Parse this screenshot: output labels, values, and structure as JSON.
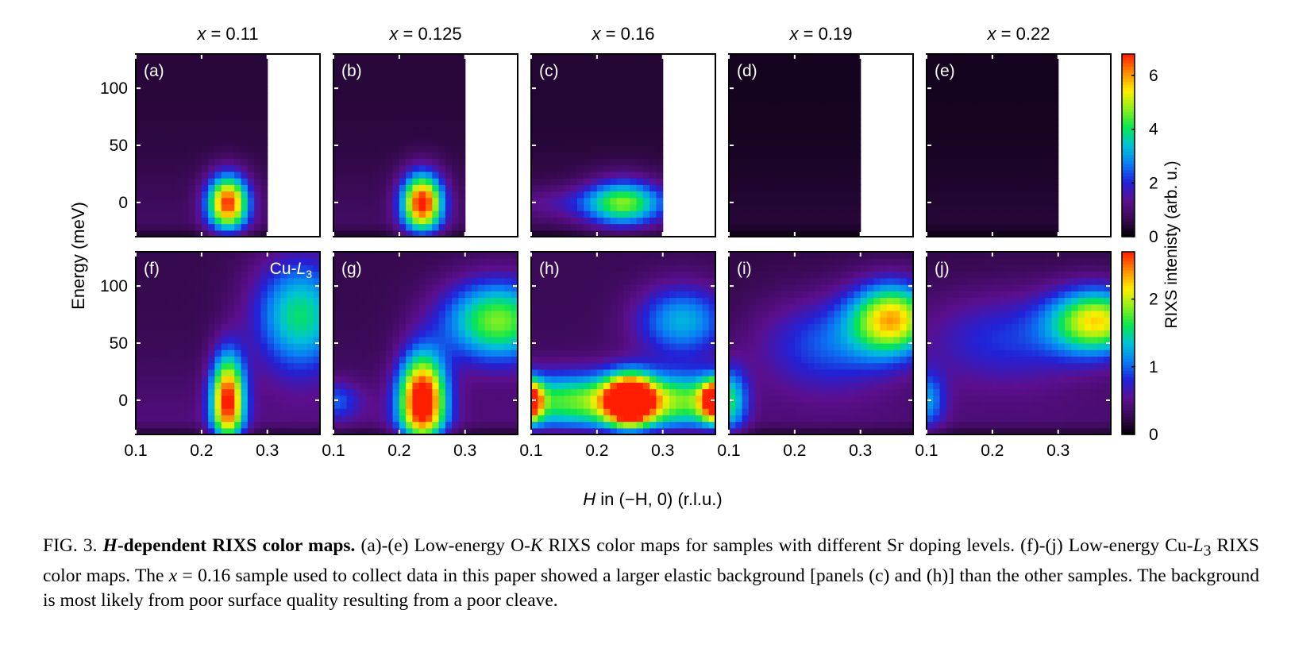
{
  "chart_data": {
    "type": "heatmap",
    "title": "",
    "xlabel": "H in (−H, 0) (r.l.u.)",
    "xlabel_italic_part": "H",
    "ylabel": "Energy (meV)",
    "colorbar_label": "RIXS intenisty (arb. u.)",
    "colormap": [
      "#000000",
      "#3a0a55",
      "#5b0f8e",
      "#2222d8",
      "#0a7cf4",
      "#00c2d8",
      "#08e650",
      "#8cf01c",
      "#ffee00",
      "#ff8c00",
      "#ff1e00"
    ],
    "grid": false,
    "xlim": [
      0.1,
      0.38
    ],
    "ylim": [
      -30,
      130
    ],
    "xticks": [
      0.1,
      0.2,
      0.3
    ],
    "xtick_labels": [
      "0.1",
      "0.2",
      "0.3"
    ],
    "yticks": [
      0,
      50,
      100
    ],
    "ytick_labels": [
      "0",
      "50",
      "100"
    ],
    "columns": [
      {
        "label_var": "x",
        "label": " = 0.11",
        "data_h_max": 0.3
      },
      {
        "label_var": "x",
        "label": " = 0.125",
        "data_h_max": 0.3
      },
      {
        "label_var": "x",
        "label": " = 0.16",
        "data_h_max": 0.3
      },
      {
        "label_var": "x",
        "label": " = 0.19",
        "data_h_max": 0.3
      },
      {
        "label_var": "x",
        "label": " = 0.22",
        "data_h_max": 0.3
      }
    ],
    "rows": [
      {
        "edge": "O-K",
        "edge_label": "O-",
        "edge_label_italic": "K",
        "colorbar_ticks": [
          0,
          2,
          4,
          6
        ],
        "colorbar_tick_labels": [
          "0",
          "2",
          "4",
          "6"
        ],
        "colorbar_max": 6.8,
        "panels": [
          {
            "label": "(a)",
            "background": 0.85,
            "features": [
              {
                "h": 0.24,
                "e": 0,
                "amp": 6.0,
                "sh": 0.022,
                "se": 17
              }
            ]
          },
          {
            "label": "(b)",
            "background": 0.85,
            "features": [
              {
                "h": 0.235,
                "e": 0,
                "amp": 6.3,
                "sh": 0.022,
                "se": 18
              }
            ]
          },
          {
            "label": "(c)",
            "background": 0.75,
            "features": [
              {
                "h": 0.24,
                "e": 0,
                "amp": 3.2,
                "sh": 0.04,
                "se": 15
              },
              {
                "h": 0.2,
                "e": 0,
                "amp": 0.9,
                "sh": 0.12,
                "se": 10
              }
            ]
          },
          {
            "label": "(d)",
            "background": 0.45,
            "features": []
          },
          {
            "label": "(e)",
            "background": 0.45,
            "features": []
          }
        ]
      },
      {
        "edge": "Cu-L3",
        "edge_label": "Cu-",
        "edge_label_italic": "L",
        "edge_label_sub": "3",
        "colorbar_ticks": [
          0,
          1,
          2
        ],
        "colorbar_tick_labels": [
          "0",
          "1",
          "2"
        ],
        "colorbar_max": 2.7,
        "panels": [
          {
            "label": "(f)",
            "background": 0.45,
            "features": [
              {
                "h": 0.24,
                "e": 0,
                "amp": 2.4,
                "sh": 0.018,
                "se": 28
              },
              {
                "h": 0.35,
                "e": 75,
                "amp": 1.3,
                "sh": 0.05,
                "se": 35
              }
            ]
          },
          {
            "label": "(g)",
            "background": 0.45,
            "features": [
              {
                "h": 0.235,
                "e": 0,
                "amp": 2.7,
                "sh": 0.025,
                "se": 28
              },
              {
                "h": 0.35,
                "e": 70,
                "amp": 1.6,
                "sh": 0.06,
                "se": 25
              },
              {
                "h": 0.1,
                "e": 0,
                "amp": 0.6,
                "sh": 0.03,
                "se": 12
              }
            ]
          },
          {
            "label": "(h)",
            "background": 0.5,
            "features": [
              {
                "h": 0.25,
                "e": 0,
                "amp": 2.5,
                "sh": 0.025,
                "se": 15
              },
              {
                "h": 0.25,
                "e": 0,
                "amp": 1.5,
                "sh": 0.2,
                "se": 17
              },
              {
                "h": 0.1,
                "e": 0,
                "amp": 1.8,
                "sh": 0.012,
                "se": 12
              },
              {
                "h": 0.38,
                "e": 0,
                "amp": 2.1,
                "sh": 0.015,
                "se": 12
              },
              {
                "h": 0.33,
                "e": 70,
                "amp": 1.0,
                "sh": 0.05,
                "se": 22
              }
            ]
          },
          {
            "label": "(i)",
            "background": 0.4,
            "features": [
              {
                "h": 0.1,
                "e": 0,
                "amp": 1.2,
                "sh": 0.02,
                "se": 20
              },
              {
                "h": 0.35,
                "e": 72,
                "amp": 1.9,
                "sh": 0.045,
                "se": 22
              },
              {
                "h": 0.25,
                "e": 50,
                "amp": 0.7,
                "sh": 0.08,
                "se": 30
              }
            ]
          },
          {
            "label": "(j)",
            "background": 0.4,
            "features": [
              {
                "h": 0.1,
                "e": 0,
                "amp": 0.8,
                "sh": 0.02,
                "se": 18
              },
              {
                "h": 0.36,
                "e": 70,
                "amp": 1.8,
                "sh": 0.05,
                "se": 20
              },
              {
                "h": 0.22,
                "e": 55,
                "amp": 0.6,
                "sh": 0.1,
                "se": 30
              }
            ]
          }
        ]
      }
    ]
  },
  "caption": {
    "fig_label": "FIG. 3.",
    "title_italic": "H",
    "title_rest": "-dependent RIXS color maps.",
    "part1": " (a)-(e) Low-energy O-",
    "part1_italic": "K",
    "part2": " RIXS color maps for samples with different Sr doping levels. (f)-(j) Low-energy Cu-",
    "part2_italic": "L",
    "part2_sub": "3",
    "part3": " RIXS color maps. The ",
    "part3_italic": "x",
    "part4": " = 0.16 sample used to collect data in this paper showed a larger elastic background [panels (c) and (h)] than the other samples. The background is most likely from poor surface quality resulting from a poor cleave."
  }
}
